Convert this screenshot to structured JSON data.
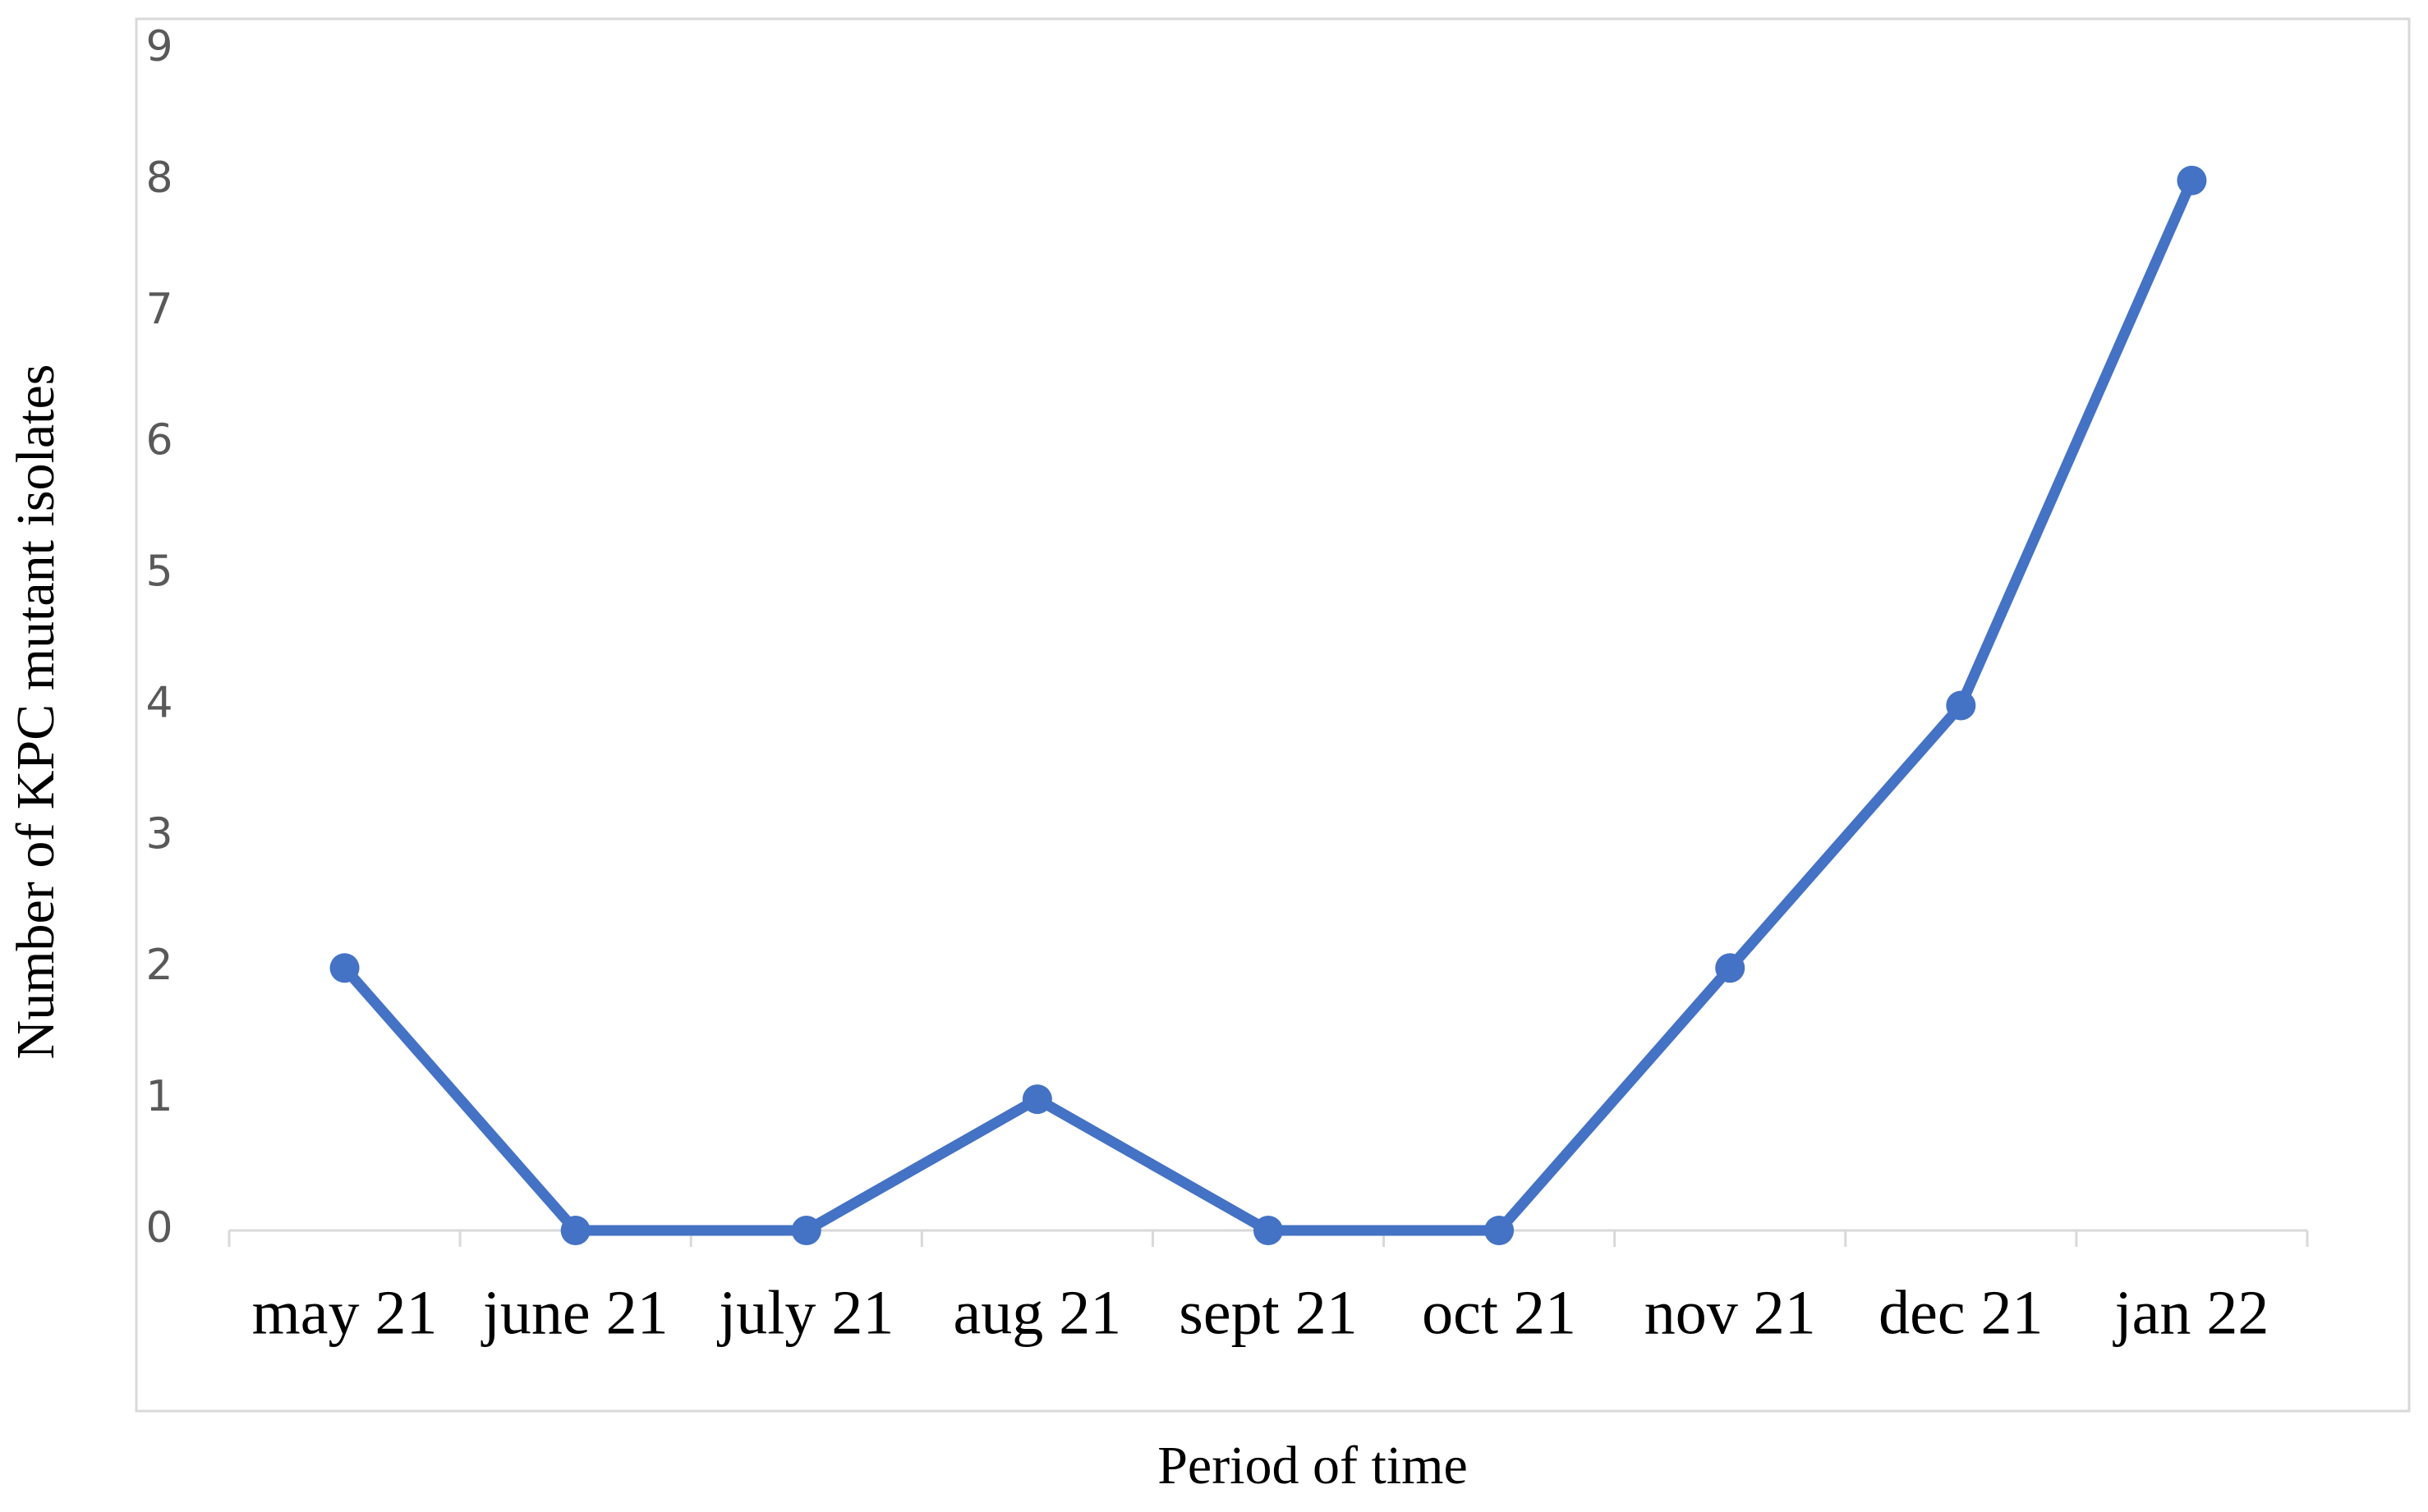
{
  "chart_data": {
    "type": "line",
    "x_label": "Period of time",
    "y_label": "Number of KPC mutant isolates",
    "categories": [
      "may 21",
      "june 21",
      "july 21",
      "aug 21",
      "sept 21",
      "oct 21",
      "nov 21",
      "dec 21",
      "jan 22"
    ],
    "values": [
      2,
      0,
      0,
      1,
      0,
      0,
      2,
      4,
      8
    ],
    "color": "#4472c4",
    "ylim": [
      0,
      9
    ],
    "yticks": [
      0,
      1,
      2,
      3,
      4,
      5,
      6,
      7,
      8,
      9
    ],
    "grid": false
  }
}
